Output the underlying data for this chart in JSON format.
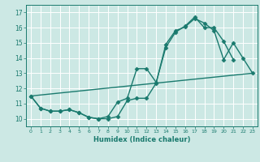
{
  "title": "",
  "xlabel": "Humidex (Indice chaleur)",
  "ylabel": "",
  "bg_color": "#cce8e4",
  "line_color": "#1a7a6e",
  "grid_color": "#ffffff",
  "xlim": [
    -0.5,
    23.5
  ],
  "ylim": [
    9.5,
    17.5
  ],
  "yticks": [
    10,
    11,
    12,
    13,
    14,
    15,
    16,
    17
  ],
  "xticks": [
    0,
    1,
    2,
    3,
    4,
    5,
    6,
    7,
    8,
    9,
    10,
    11,
    12,
    13,
    14,
    15,
    16,
    17,
    18,
    19,
    20,
    21,
    22,
    23
  ],
  "line1_x": [
    0,
    1,
    2,
    3,
    4,
    5,
    6,
    7,
    8,
    9,
    10,
    11,
    12,
    13,
    14,
    15,
    16,
    17,
    18,
    19,
    20,
    21,
    22,
    23
  ],
  "line1_y": [
    11.5,
    10.7,
    10.5,
    10.5,
    10.6,
    10.4,
    10.1,
    10.0,
    10.0,
    10.15,
    11.2,
    11.35,
    11.35,
    12.35,
    14.9,
    15.8,
    16.05,
    16.6,
    16.3,
    15.8,
    13.9,
    15.0,
    14.0,
    13.0
  ],
  "line2_x": [
    0,
    1,
    2,
    3,
    4,
    5,
    6,
    7,
    8,
    9,
    10,
    11,
    12,
    13,
    14,
    15,
    16,
    17,
    18,
    19,
    20,
    21
  ],
  "line2_y": [
    11.5,
    10.7,
    10.5,
    10.5,
    10.6,
    10.4,
    10.1,
    10.0,
    10.15,
    11.1,
    11.35,
    13.3,
    13.3,
    12.4,
    14.7,
    15.7,
    16.1,
    16.7,
    16.0,
    16.0,
    15.1,
    13.9
  ],
  "line3_x": [
    0,
    23
  ],
  "line3_y": [
    11.5,
    13.0
  ],
  "marker_style": "D",
  "marker_size": 2.5,
  "line_width": 1.0
}
